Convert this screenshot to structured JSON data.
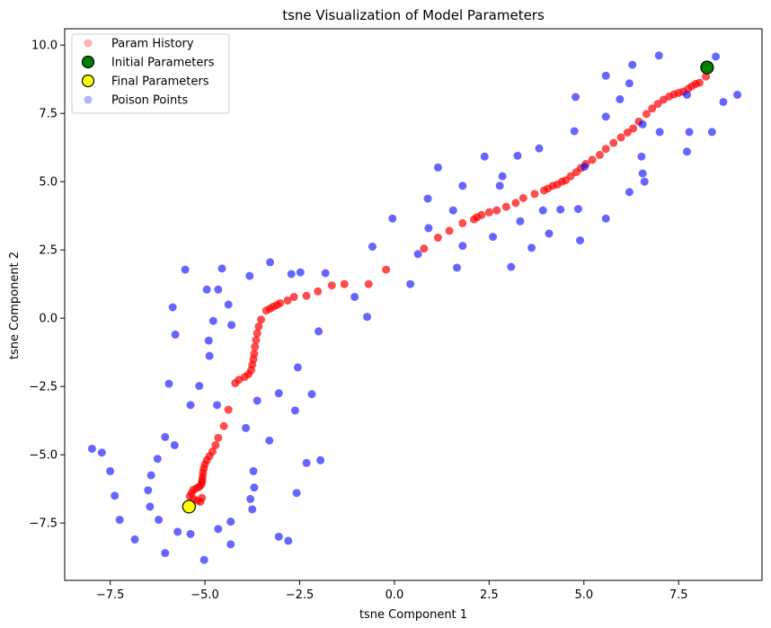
{
  "chart_data": {
    "type": "scatter",
    "title": "tsne Visualization of Model Parameters",
    "xlabel": "tsne Component 1",
    "ylabel": "tsne Component 2",
    "xlim": [
      -8.7,
      9.7
    ],
    "ylim": [
      -9.6,
      10.6
    ],
    "xticks": [
      -7.5,
      -5.0,
      -2.5,
      0.0,
      2.5,
      5.0,
      7.5
    ],
    "xtick_labels": [
      "−7.5",
      "−5.0",
      "−2.5",
      "0.0",
      "2.5",
      "5.0",
      "7.5"
    ],
    "yticks": [
      -7.5,
      -5.0,
      -2.5,
      0.0,
      2.5,
      5.0,
      7.5,
      10.0
    ],
    "ytick_labels": [
      "−7.5",
      "−5.0",
      "−2.5",
      "0.0",
      "2.5",
      "5.0",
      "7.5",
      "10.0"
    ],
    "grid": false,
    "legend_position": "top-left",
    "series": [
      {
        "name": "Param History",
        "color": "#ff0000",
        "marker": "circle",
        "points": [
          [
            8.22,
            8.85
          ],
          [
            8.05,
            8.62
          ],
          [
            7.95,
            8.58
          ],
          [
            7.85,
            8.5
          ],
          [
            7.75,
            8.4
          ],
          [
            7.62,
            8.3
          ],
          [
            7.5,
            8.25
          ],
          [
            7.38,
            8.2
          ],
          [
            7.25,
            8.12
          ],
          [
            7.1,
            8.0
          ],
          [
            6.95,
            7.85
          ],
          [
            6.8,
            7.68
          ],
          [
            6.65,
            7.48
          ],
          [
            6.45,
            7.2
          ],
          [
            6.3,
            6.95
          ],
          [
            6.15,
            6.8
          ],
          [
            5.98,
            6.62
          ],
          [
            5.78,
            6.42
          ],
          [
            5.58,
            6.2
          ],
          [
            5.42,
            5.98
          ],
          [
            5.22,
            5.8
          ],
          [
            5.05,
            5.65
          ],
          [
            4.92,
            5.5
          ],
          [
            4.8,
            5.35
          ],
          [
            4.65,
            5.2
          ],
          [
            4.52,
            5.05
          ],
          [
            4.42,
            5.0
          ],
          [
            4.3,
            4.9
          ],
          [
            4.18,
            4.85
          ],
          [
            4.05,
            4.75
          ],
          [
            3.95,
            4.68
          ],
          [
            3.7,
            4.55
          ],
          [
            3.4,
            4.4
          ],
          [
            3.2,
            4.22
          ],
          [
            2.95,
            4.08
          ],
          [
            2.7,
            3.95
          ],
          [
            2.5,
            3.88
          ],
          [
            2.3,
            3.78
          ],
          [
            2.18,
            3.7
          ],
          [
            2.1,
            3.62
          ],
          [
            1.8,
            3.48
          ],
          [
            1.45,
            3.2
          ],
          [
            1.15,
            2.95
          ],
          [
            0.78,
            2.55
          ],
          [
            -0.22,
            1.78
          ],
          [
            -0.68,
            1.25
          ],
          [
            -1.32,
            1.25
          ],
          [
            -1.65,
            1.2
          ],
          [
            -2.02,
            0.98
          ],
          [
            -2.32,
            0.82
          ],
          [
            -2.65,
            0.78
          ],
          [
            -2.82,
            0.65
          ],
          [
            -3.02,
            0.55
          ],
          [
            -3.1,
            0.48
          ],
          [
            -3.2,
            0.42
          ],
          [
            -3.28,
            0.35
          ],
          [
            -3.38,
            0.28
          ],
          [
            -3.52,
            -0.05
          ],
          [
            -3.58,
            -0.3
          ],
          [
            -3.62,
            -0.55
          ],
          [
            -3.65,
            -0.8
          ],
          [
            -3.68,
            -1.05
          ],
          [
            -3.7,
            -1.3
          ],
          [
            -3.72,
            -1.5
          ],
          [
            -3.75,
            -1.7
          ],
          [
            -3.78,
            -1.9
          ],
          [
            -3.85,
            -2.05
          ],
          [
            -3.95,
            -2.15
          ],
          [
            -4.1,
            -2.25
          ],
          [
            -4.2,
            -2.38
          ],
          [
            -4.38,
            -3.35
          ],
          [
            -4.5,
            -3.95
          ],
          [
            -4.65,
            -4.38
          ],
          [
            -4.72,
            -4.65
          ],
          [
            -4.8,
            -4.88
          ],
          [
            -4.88,
            -5.05
          ],
          [
            -4.95,
            -5.2
          ],
          [
            -5.0,
            -5.35
          ],
          [
            -5.03,
            -5.5
          ],
          [
            -5.05,
            -5.65
          ],
          [
            -5.06,
            -5.8
          ],
          [
            -5.07,
            -5.92
          ],
          [
            -5.08,
            -6.02
          ],
          [
            -5.1,
            -6.1
          ],
          [
            -5.15,
            -6.18
          ],
          [
            -5.22,
            -6.22
          ],
          [
            -5.3,
            -6.28
          ],
          [
            -5.35,
            -6.4
          ],
          [
            -5.4,
            -6.52
          ],
          [
            -5.3,
            -6.62
          ],
          [
            -5.2,
            -6.68
          ],
          [
            -5.12,
            -6.72
          ],
          [
            -5.08,
            -6.58
          ]
        ]
      },
      {
        "name": "Initial Parameters",
        "color": "#008000",
        "marker": "circle-edge",
        "points": [
          [
            8.25,
            9.18
          ]
        ]
      },
      {
        "name": "Final Parameters",
        "color": "#ffff00",
        "marker": "circle-edge",
        "points": [
          [
            -5.42,
            -6.9
          ]
        ]
      },
      {
        "name": "Poison Points",
        "color": "#0000ff",
        "marker": "circle",
        "points": [
          [
            6.98,
            9.62
          ],
          [
            8.48,
            9.58
          ],
          [
            5.58,
            8.88
          ],
          [
            6.28,
            9.28
          ],
          [
            6.2,
            8.6
          ],
          [
            4.78,
            8.1
          ],
          [
            5.95,
            8.02
          ],
          [
            8.68,
            7.92
          ],
          [
            9.05,
            8.18
          ],
          [
            7.72,
            8.18
          ],
          [
            5.58,
            7.38
          ],
          [
            6.55,
            7.1
          ],
          [
            7.0,
            6.82
          ],
          [
            7.78,
            6.82
          ],
          [
            8.38,
            6.82
          ],
          [
            4.75,
            6.85
          ],
          [
            7.72,
            6.1
          ],
          [
            6.52,
            5.92
          ],
          [
            3.82,
            6.22
          ],
          [
            3.25,
            5.95
          ],
          [
            2.38,
            5.92
          ],
          [
            1.15,
            5.52
          ],
          [
            6.55,
            5.3
          ],
          [
            2.85,
            5.2
          ],
          [
            5.02,
            5.55
          ],
          [
            1.8,
            4.85
          ],
          [
            2.78,
            4.85
          ],
          [
            6.6,
            5.0
          ],
          [
            0.88,
            4.38
          ],
          [
            1.55,
            3.95
          ],
          [
            3.92,
            3.95
          ],
          [
            4.38,
            3.98
          ],
          [
            4.85,
            4.0
          ],
          [
            6.2,
            4.62
          ],
          [
            -0.05,
            3.65
          ],
          [
            3.32,
            3.55
          ],
          [
            0.9,
            3.3
          ],
          [
            5.58,
            3.65
          ],
          [
            4.08,
            3.1
          ],
          [
            2.6,
            2.98
          ],
          [
            4.9,
            2.85
          ],
          [
            -0.58,
            2.62
          ],
          [
            1.8,
            2.65
          ],
          [
            3.62,
            2.58
          ],
          [
            0.62,
            2.35
          ],
          [
            1.65,
            1.85
          ],
          [
            3.08,
            1.88
          ],
          [
            -3.28,
            2.05
          ],
          [
            -3.82,
            1.55
          ],
          [
            -2.48,
            1.68
          ],
          [
            -2.72,
            1.62
          ],
          [
            -1.82,
            1.65
          ],
          [
            0.42,
            1.25
          ],
          [
            -4.55,
            1.82
          ],
          [
            -5.52,
            1.78
          ],
          [
            -4.95,
            1.05
          ],
          [
            -4.65,
            1.05
          ],
          [
            -1.05,
            0.78
          ],
          [
            -5.85,
            0.4
          ],
          [
            -0.72,
            0.05
          ],
          [
            -4.38,
            0.5
          ],
          [
            -4.78,
            -0.1
          ],
          [
            -4.3,
            -0.25
          ],
          [
            -2.0,
            -0.48
          ],
          [
            -5.78,
            -0.6
          ],
          [
            -4.9,
            -0.82
          ],
          [
            -4.88,
            -1.38
          ],
          [
            -2.55,
            -1.8
          ],
          [
            -5.95,
            -2.4
          ],
          [
            -5.15,
            -2.48
          ],
          [
            -3.05,
            -2.75
          ],
          [
            -2.18,
            -2.78
          ],
          [
            -3.62,
            -3.02
          ],
          [
            -5.38,
            -3.18
          ],
          [
            -4.68,
            -3.18
          ],
          [
            -2.62,
            -3.38
          ],
          [
            -6.05,
            -4.35
          ],
          [
            -3.92,
            -4.02
          ],
          [
            -3.3,
            -4.48
          ],
          [
            -7.98,
            -4.78
          ],
          [
            -7.72,
            -4.92
          ],
          [
            -6.25,
            -5.15
          ],
          [
            -5.8,
            -4.65
          ],
          [
            -1.95,
            -5.2
          ],
          [
            -2.32,
            -5.3
          ],
          [
            -7.5,
            -5.6
          ],
          [
            -6.42,
            -5.75
          ],
          [
            -3.72,
            -5.6
          ],
          [
            -6.5,
            -6.3
          ],
          [
            -3.7,
            -6.2
          ],
          [
            -2.58,
            -6.4
          ],
          [
            -7.38,
            -6.5
          ],
          [
            -3.8,
            -6.62
          ],
          [
            -6.45,
            -6.9
          ],
          [
            -3.75,
            -7.0
          ],
          [
            -6.22,
            -7.38
          ],
          [
            -7.25,
            -7.38
          ],
          [
            -4.32,
            -7.45
          ],
          [
            -4.65,
            -7.72
          ],
          [
            -5.72,
            -7.82
          ],
          [
            -5.38,
            -7.9
          ],
          [
            -3.05,
            -8.0
          ],
          [
            -2.8,
            -8.15
          ],
          [
            -6.85,
            -8.1
          ],
          [
            -4.32,
            -8.28
          ],
          [
            -6.05,
            -8.6
          ],
          [
            -5.02,
            -8.85
          ]
        ]
      }
    ]
  }
}
